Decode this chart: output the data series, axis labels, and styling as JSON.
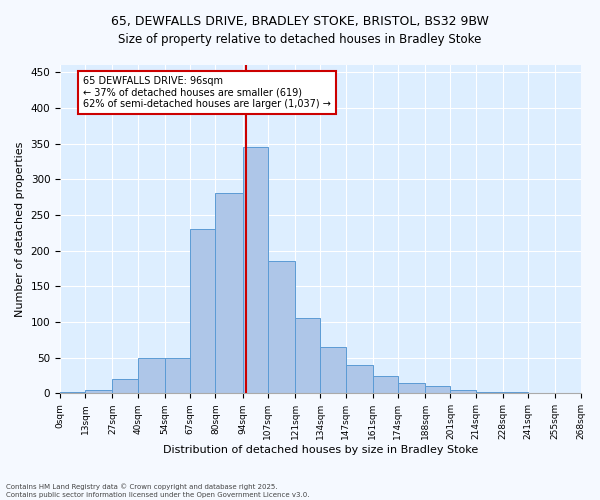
{
  "title_line1": "65, DEWFALLS DRIVE, BRADLEY STOKE, BRISTOL, BS32 9BW",
  "title_line2": "Size of property relative to detached houses in Bradley Stoke",
  "xlabel": "Distribution of detached houses by size in Bradley Stoke",
  "ylabel": "Number of detached properties",
  "bins": [
    0,
    13,
    27,
    40,
    54,
    67,
    80,
    94,
    107,
    121,
    134,
    147,
    161,
    174,
    188,
    201,
    214,
    228,
    241,
    255,
    268
  ],
  "bin_labels": [
    "0sqm",
    "13sqm",
    "27sqm",
    "40sqm",
    "54sqm",
    "67sqm",
    "80sqm",
    "94sqm",
    "107sqm",
    "121sqm",
    "134sqm",
    "147sqm",
    "161sqm",
    "174sqm",
    "188sqm",
    "201sqm",
    "214sqm",
    "228sqm",
    "241sqm",
    "255sqm",
    "268sqm"
  ],
  "bar_heights": [
    2,
    5,
    20,
    50,
    50,
    230,
    280,
    345,
    185,
    105,
    65,
    40,
    25,
    15,
    10,
    5,
    2,
    2,
    1,
    0
  ],
  "bar_color": "#aec6e8",
  "bar_edge_color": "#5b9bd5",
  "property_size": 96,
  "vline_color": "#cc0000",
  "annotation_title": "65 DEWFALLS DRIVE: 96sqm",
  "annotation_line2": "← 37% of detached houses are smaller (619)",
  "annotation_line3": "62% of semi-detached houses are larger (1,037) →",
  "annotation_box_color": "#ffffff",
  "annotation_box_edge_color": "#cc0000",
  "ylim": [
    0,
    460
  ],
  "yticks": [
    0,
    50,
    100,
    150,
    200,
    250,
    300,
    350,
    400,
    450
  ],
  "ax_background_color": "#ddeeff",
  "fig_background_color": "#f5f9ff",
  "footnote1": "Contains HM Land Registry data © Crown copyright and database right 2025.",
  "footnote2": "Contains public sector information licensed under the Open Government Licence v3.0."
}
